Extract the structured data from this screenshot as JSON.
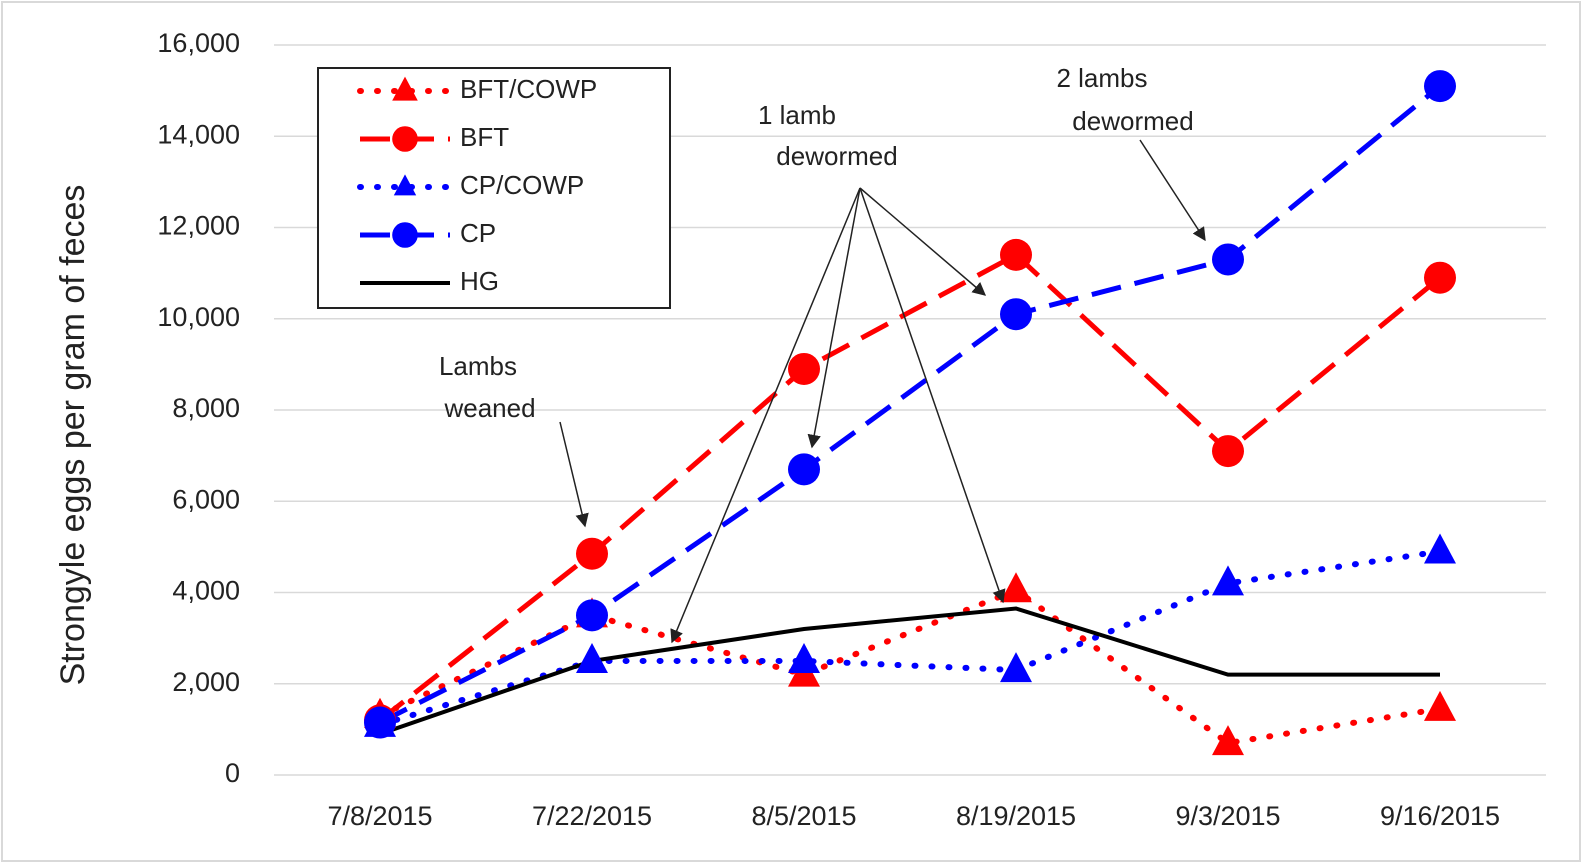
{
  "chart_data": {
    "type": "line",
    "y_label": "Strongyle eggs per gram of feces",
    "categories": [
      "7/8/2015",
      "7/22/2015",
      "8/5/2015",
      "8/19/2015",
      "9/3/2015",
      "9/16/2015"
    ],
    "series": [
      {
        "name": "BFT/COWP",
        "color": "#ff0000",
        "line_style": "dotted",
        "marker": "triangle",
        "values": [
          1300,
          3500,
          2200,
          4050,
          700,
          1450
        ]
      },
      {
        "name": "BFT",
        "color": "#ff0000",
        "line_style": "dashed",
        "marker": "circle",
        "values": [
          1200,
          4850,
          8900,
          11400,
          7100,
          10900
        ]
      },
      {
        "name": "CP/COWP",
        "color": "#0000ff",
        "line_style": "dotted",
        "marker": "triangle",
        "values": [
          1100,
          2500,
          2500,
          2300,
          4200,
          4900
        ]
      },
      {
        "name": "CP",
        "color": "#0000ff",
        "line_style": "dashed",
        "marker": "circle",
        "values": [
          1150,
          3500,
          6700,
          10100,
          11300,
          15100
        ]
      },
      {
        "name": "HG",
        "color": "#000000",
        "line_style": "solid",
        "values": [
          900,
          2500,
          3200,
          3650,
          2200,
          2200
        ]
      }
    ],
    "ylim": [
      0,
      16000
    ],
    "yticks": [
      0,
      {
        "value": 2000,
        "label": "2,000"
      },
      {
        "value": 4000,
        "label": "4,000"
      },
      {
        "value": 6000,
        "label": "6,000"
      },
      {
        "value": 8000,
        "label": "8,000"
      },
      {
        "value": 10000,
        "label": "10,000"
      },
      {
        "value": 12000,
        "label": "12,000"
      },
      {
        "value": 14000,
        "label": "14,000"
      },
      {
        "value": 16000,
        "label": "16,000"
      }
    ],
    "grid": true,
    "legend": "upper left",
    "annotations": [
      {
        "lines": [
          "Lambs",
          "weaned"
        ]
      },
      {
        "lines": [
          "1 lamb",
          "dewormed"
        ]
      },
      {
        "lines": [
          "2 lambs",
          "dewormed"
        ]
      }
    ]
  }
}
